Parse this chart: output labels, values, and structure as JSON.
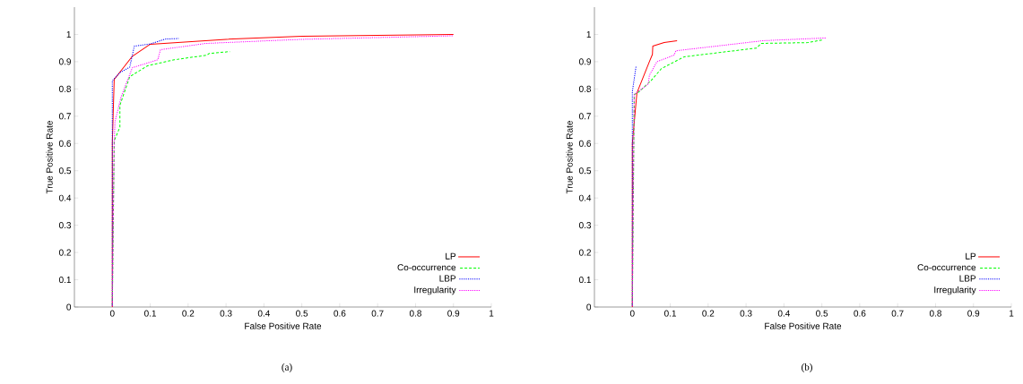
{
  "chart_data": [
    {
      "type": "line",
      "xlabel": "False Positive Rate",
      "ylabel": "True Positive Rate",
      "annotations": [
        "(a)"
      ],
      "xlim": [
        -0.1,
        1
      ],
      "ylim": [
        0,
        1.1
      ],
      "xticks": [
        0,
        0.1,
        0.2,
        0.3,
        0.4,
        0.5,
        0.6,
        0.7,
        0.8,
        0.9,
        1
      ],
      "yticks": [
        0,
        0.1,
        0.2,
        0.3,
        0.4,
        0.5,
        0.6,
        0.7,
        0.8,
        0.9,
        1
      ],
      "legend": "bottom right",
      "marker": "none",
      "series": [
        {
          "name": "LP",
          "color": "#ff0000",
          "line_style": "solid",
          "x": [
            0,
            0,
            0.005,
            0.053,
            0.1,
            0.3,
            0.5,
            0.9
          ],
          "values": [
            0,
            0.6,
            0.835,
            0.92,
            0.964,
            0.982,
            0.993,
            1.0
          ]
        },
        {
          "name": "Co-occurrence",
          "color": "#00ff00",
          "line_style": "dashed",
          "x": [
            0,
            0.005,
            0.02,
            0.02,
            0.046,
            0.093,
            0.163,
            0.25,
            0.255,
            0.31
          ],
          "values": [
            0,
            0.61,
            0.66,
            0.74,
            0.845,
            0.885,
            0.907,
            0.924,
            0.93,
            0.937
          ]
        },
        {
          "name": "LBP",
          "color": "#0000ff",
          "line_style": "dotted",
          "x": [
            0,
            0,
            0.02,
            0.046,
            0.058,
            0.1,
            0.14,
            0.175
          ],
          "values": [
            0,
            0.83,
            0.86,
            0.88,
            0.957,
            0.965,
            0.983,
            0.985
          ]
        },
        {
          "name": "Irregularity",
          "color": "#ff00ff",
          "line_style": "dotted",
          "x": [
            0,
            0.005,
            0.007,
            0.023,
            0.053,
            0.12,
            0.127,
            0.247,
            0.5,
            0.9
          ],
          "values": [
            0,
            0.6,
            0.68,
            0.77,
            0.878,
            0.907,
            0.944,
            0.967,
            0.982,
            0.995
          ]
        }
      ]
    },
    {
      "type": "line",
      "xlabel": "False Positive Rate",
      "ylabel": "True Positive Rate",
      "annotations": [
        "(b)"
      ],
      "xlim": [
        -0.1,
        1
      ],
      "ylim": [
        0,
        1.1
      ],
      "xticks": [
        0,
        0.1,
        0.2,
        0.3,
        0.4,
        0.5,
        0.6,
        0.7,
        0.8,
        0.9,
        1
      ],
      "yticks": [
        0,
        0.1,
        0.2,
        0.3,
        0.4,
        0.5,
        0.6,
        0.7,
        0.8,
        0.9,
        1
      ],
      "legend": "bottom right",
      "marker": "none",
      "series": [
        {
          "name": "LP",
          "color": "#ff0000",
          "line_style": "solid",
          "x": [
            0,
            0,
            0.012,
            0.045,
            0.053,
            0.054,
            0.084,
            0.118
          ],
          "values": [
            0,
            0.6,
            0.785,
            0.9,
            0.927,
            0.957,
            0.97,
            0.977
          ]
        },
        {
          "name": "Co-occurrence",
          "color": "#00ff00",
          "line_style": "dashed",
          "x": [
            0,
            0.005,
            0.014,
            0.049,
            0.077,
            0.137,
            0.328,
            0.34,
            0.463,
            0.502
          ],
          "values": [
            0,
            0.78,
            0.785,
            0.83,
            0.875,
            0.918,
            0.95,
            0.967,
            0.97,
            0.98
          ]
        },
        {
          "name": "LBP",
          "color": "#0000ff",
          "line_style": "dotted",
          "x": [
            0,
            0,
            0.01
          ],
          "values": [
            0,
            0.79,
            0.885
          ]
        },
        {
          "name": "Irregularity",
          "color": "#ff00ff",
          "line_style": "dotted",
          "x": [
            0,
            0.005,
            0.042,
            0.045,
            0.065,
            0.11,
            0.115,
            0.345,
            0.51
          ],
          "values": [
            0,
            0.78,
            0.818,
            0.85,
            0.9,
            0.924,
            0.94,
            0.977,
            0.987
          ]
        }
      ]
    }
  ]
}
